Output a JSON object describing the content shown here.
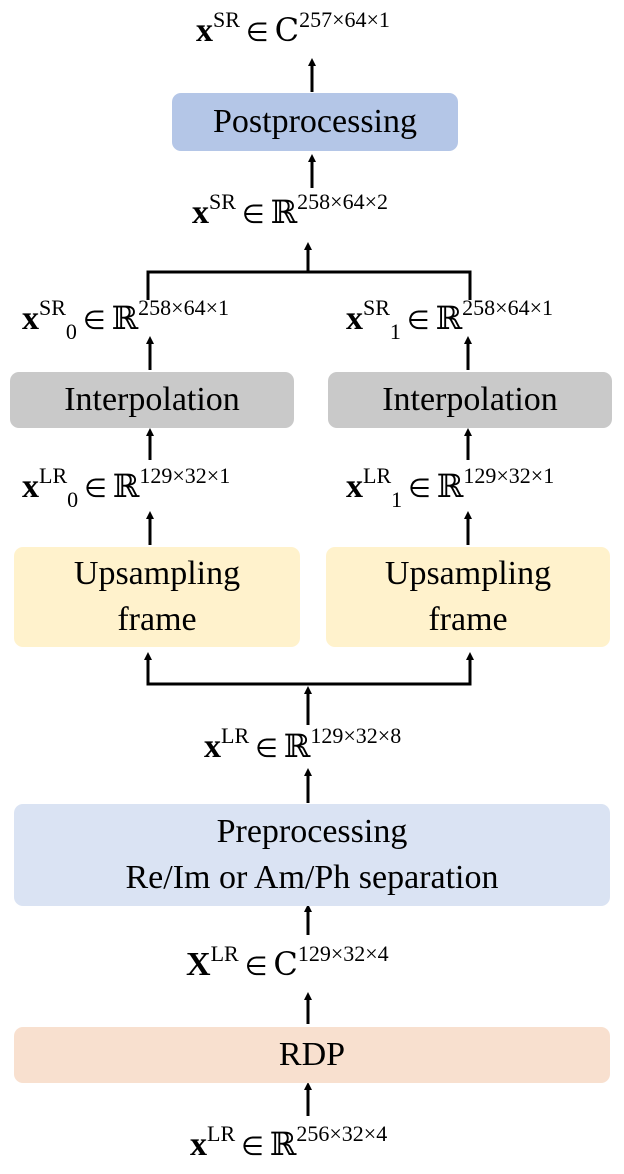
{
  "colors": {
    "postprocessing": "#B4C6E7",
    "interpolation": "#C9C9C9",
    "upsampling": "#FFF2CC",
    "preprocessing": "#DAE3F3",
    "rdp": "#F8E0CF"
  },
  "boxes": {
    "postprocessing": "Postprocessing",
    "interpolation_left": "Interpolation",
    "interpolation_right": "Interpolation",
    "upsampling_left": [
      "Upsampling",
      "frame"
    ],
    "upsampling_right": [
      "Upsampling",
      "frame"
    ],
    "preprocessing": [
      "Preprocessing",
      "Re/Im or Am/Ph separation"
    ],
    "rdp": "RDP"
  },
  "labels": {
    "out_complex": {
      "var": "x",
      "sup": "SR",
      "sub": "",
      "in": "∈",
      "set": "C",
      "dims": "257×64×1"
    },
    "out_real": {
      "var": "x",
      "sup": "SR",
      "sub": "",
      "in": "∈",
      "set": "ℝ",
      "dims": "258×64×2"
    },
    "sr0": {
      "var": "x",
      "sup": "SR",
      "sub": "0",
      "in": "∈",
      "set": "ℝ",
      "dims": "258×64×1"
    },
    "sr1": {
      "var": "x",
      "sup": "SR",
      "sub": "1",
      "in": "∈",
      "set": "ℝ",
      "dims": "258×64×1"
    },
    "lr0": {
      "var": "x",
      "sup": "LR",
      "sub": "0",
      "in": "∈",
      "set": "ℝ",
      "dims": "129×32×1"
    },
    "lr1": {
      "var": "x",
      "sup": "LR",
      "sub": "1",
      "in": "∈",
      "set": "ℝ",
      "dims": "129×32×1"
    },
    "lr8": {
      "var": "x",
      "sup": "LR",
      "sub": "",
      "in": "∈",
      "set": "ℝ",
      "dims": "129×32×8"
    },
    "lr_complex": {
      "var": "X",
      "sup": "LR",
      "sub": "",
      "in": "∈",
      "set": "C",
      "dims": "129×32×4"
    },
    "lr_input": {
      "var": "x",
      "sup": "LR",
      "sub": "",
      "in": "∈",
      "set": "ℝ",
      "dims": "256×32×4"
    }
  }
}
